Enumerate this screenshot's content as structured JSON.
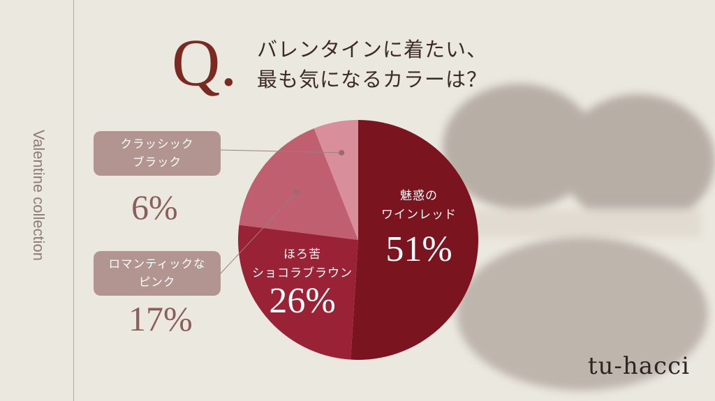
{
  "side_label": "Valentine collection",
  "question_mark": "Q.",
  "title_lines": [
    "バレンタインに着たい、",
    "最も気になるカラーは？"
  ],
  "logo": "tu-hacci",
  "chart_data": {
    "type": "pie",
    "start": "top",
    "direction": "clockwise",
    "slices": [
      {
        "label_lines": [
          "魅惑の",
          "ワインレッド"
        ],
        "value": 51,
        "display": "51%",
        "color": "#7a1520"
      },
      {
        "label_lines": [
          "ほろ苦",
          "ショコラブラウン"
        ],
        "value": 26,
        "display": "26%",
        "color": "#9a2236"
      },
      {
        "label_lines": [
          "ロマンティックな",
          "ピンク"
        ],
        "value": 17,
        "display": "17%",
        "color": "#bf5f6f"
      },
      {
        "label_lines": [
          "クラッシック",
          "ブラック"
        ],
        "value": 6,
        "display": "6%",
        "color": "#d98e9c"
      }
    ],
    "callout_color": "#b29591",
    "callout_text_color": "#8a5e5a"
  }
}
